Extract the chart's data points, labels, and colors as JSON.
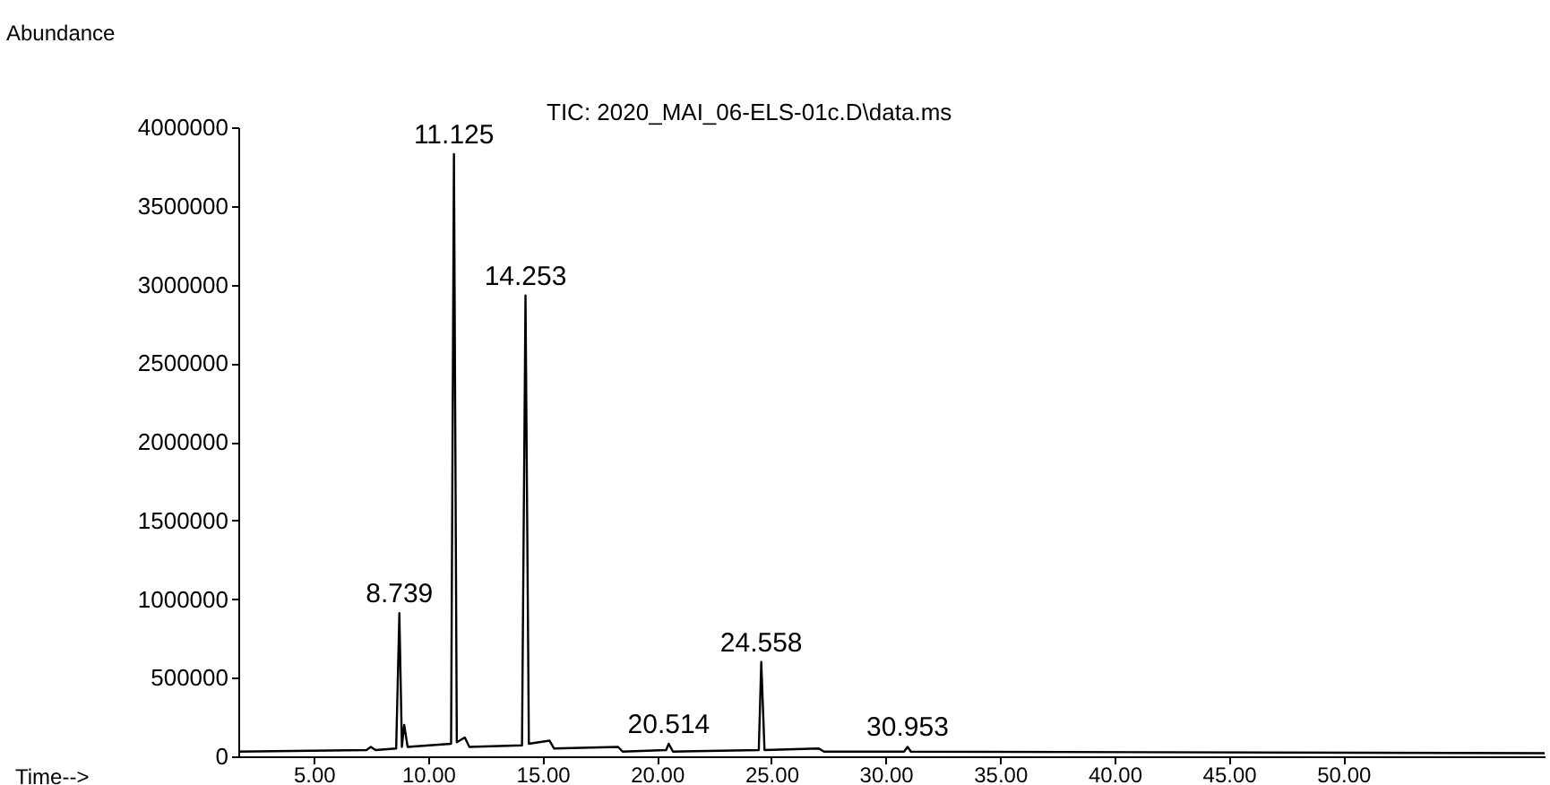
{
  "chart_data": {
    "type": "line",
    "title": "TIC: 2020_MAI_06-ELS-01c.D\\data.ms",
    "xlabel": "Time-->",
    "ylabel": "Abundance",
    "x": [
      1.7,
      7.3,
      7.49,
      7.7,
      8.6,
      8.739,
      8.85,
      8.95,
      9.1,
      11.0,
      11.125,
      11.25,
      11.6,
      11.8,
      14.1,
      14.253,
      14.4,
      15.3,
      15.5,
      18.3,
      18.5,
      20.4,
      20.514,
      20.7,
      24.45,
      24.558,
      24.7,
      27.07,
      27.3,
      30.8,
      30.953,
      31.1,
      58.8
    ],
    "series": [
      {
        "color": "#000000",
        "values": [
          30000,
          40000,
          60000,
          40000,
          50000,
          910000,
          60000,
          200000,
          60000,
          80000,
          3830000,
          90000,
          120000,
          60000,
          70000,
          2930000,
          80000,
          100000,
          50000,
          60000,
          30000,
          40000,
          80000,
          30000,
          40000,
          600000,
          40000,
          50000,
          30000,
          30000,
          60000,
          30000,
          20000
        ]
      }
    ],
    "xlim": [
      1.7,
      58.8
    ],
    "ylim": [
      0,
      4000000
    ],
    "xticks": [
      {
        "value": 5,
        "label": "5.00"
      },
      {
        "value": 10,
        "label": "10.00"
      },
      {
        "value": 15,
        "label": "15.00"
      },
      {
        "value": 20,
        "label": "20.00"
      },
      {
        "value": 25,
        "label": "25.00"
      },
      {
        "value": 30,
        "label": "30.00"
      },
      {
        "value": 35,
        "label": "35.00"
      },
      {
        "value": 40,
        "label": "40.00"
      },
      {
        "value": 45,
        "label": "45.00"
      },
      {
        "value": 50,
        "label": "50.00"
      }
    ],
    "yticks": [
      0,
      500000,
      1000000,
      1500000,
      2000000,
      2500000,
      3000000,
      3500000,
      4000000
    ],
    "annotations": [
      {
        "text": "8.739",
        "x": 8.739,
        "y": 910000
      },
      {
        "text": "11.125",
        "x": 11.125,
        "y": 3830000
      },
      {
        "text": "14.253",
        "x": 14.253,
        "y": 2930000
      },
      {
        "text": "20.514",
        "x": 20.514,
        "y": 80000
      },
      {
        "text": "24.558",
        "x": 24.558,
        "y": 600000
      },
      {
        "text": "30.953",
        "x": 30.953,
        "y": 60000
      }
    ]
  }
}
